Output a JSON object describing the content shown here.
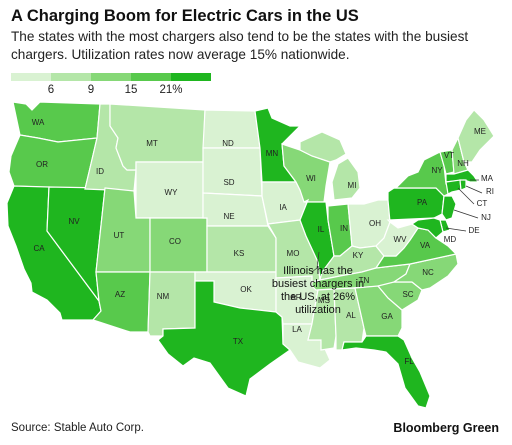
{
  "header": {
    "title": "A Charging Boom for Electric Cars in the US",
    "subtitle": "The states with the most chargers also tend to be the states with the busiest chargers. Utilization rates now average 15% nationwide."
  },
  "legend": {
    "colors": [
      "#d9f2d2",
      "#b4e6a8",
      "#86d877",
      "#58c94c",
      "#1fb61f"
    ],
    "ticks": [
      "6",
      "9",
      "15",
      "21%"
    ]
  },
  "colors": {
    "c1": "#d9f2d2",
    "c2": "#b4e6a8",
    "c3": "#86d877",
    "c4": "#58c94c",
    "c5": "#1fb61f"
  },
  "states": [
    {
      "abbr": "WA",
      "bin": 4
    },
    {
      "abbr": "OR",
      "bin": 4
    },
    {
      "abbr": "CA",
      "bin": 5
    },
    {
      "abbr": "NV",
      "bin": 5
    },
    {
      "abbr": "ID",
      "bin": 2
    },
    {
      "abbr": "MT",
      "bin": 2
    },
    {
      "abbr": "WY",
      "bin": 1
    },
    {
      "abbr": "UT",
      "bin": 3
    },
    {
      "abbr": "AZ",
      "bin": 4
    },
    {
      "abbr": "CO",
      "bin": 3
    },
    {
      "abbr": "NM",
      "bin": 2
    },
    {
      "abbr": "ND",
      "bin": 1
    },
    {
      "abbr": "SD",
      "bin": 1
    },
    {
      "abbr": "NE",
      "bin": 1
    },
    {
      "abbr": "KS",
      "bin": 2
    },
    {
      "abbr": "OK",
      "bin": 1
    },
    {
      "abbr": "TX",
      "bin": 5
    },
    {
      "abbr": "MN",
      "bin": 5
    },
    {
      "abbr": "IA",
      "bin": 1
    },
    {
      "abbr": "MO",
      "bin": 2
    },
    {
      "abbr": "AR",
      "bin": 1
    },
    {
      "abbr": "LA",
      "bin": 1
    },
    {
      "abbr": "WI",
      "bin": 3
    },
    {
      "abbr": "IL",
      "bin": 5
    },
    {
      "abbr": "MI",
      "bin": 2
    },
    {
      "abbr": "IN",
      "bin": 4
    },
    {
      "abbr": "OH",
      "bin": 1
    },
    {
      "abbr": "KY",
      "bin": 2
    },
    {
      "abbr": "TN",
      "bin": 3
    },
    {
      "abbr": "MS",
      "bin": 2
    },
    {
      "abbr": "AL",
      "bin": 2
    },
    {
      "abbr": "GA",
      "bin": 3
    },
    {
      "abbr": "FL",
      "bin": 5
    },
    {
      "abbr": "SC",
      "bin": 3
    },
    {
      "abbr": "NC",
      "bin": 3
    },
    {
      "abbr": "VA",
      "bin": 4
    },
    {
      "abbr": "WV",
      "bin": 1
    },
    {
      "abbr": "PA",
      "bin": 5
    },
    {
      "abbr": "NY",
      "bin": 4
    },
    {
      "abbr": "VT",
      "bin": 4
    },
    {
      "abbr": "NH",
      "bin": 3
    },
    {
      "abbr": "ME",
      "bin": 2
    },
    {
      "abbr": "MA",
      "bin": 5
    },
    {
      "abbr": "RI",
      "bin": 5
    },
    {
      "abbr": "CT",
      "bin": 5
    },
    {
      "abbr": "NJ",
      "bin": 5
    },
    {
      "abbr": "DE",
      "bin": 5
    },
    {
      "abbr": "MD",
      "bin": 5
    }
  ],
  "annotation": {
    "line1": "Illinois has the",
    "line2": "busiest chargers in",
    "line3": "the US, at 26%",
    "line4": "utilization"
  },
  "footer": {
    "source": "Source: Stable Auto Corp.",
    "brand": "Bloomberg Green"
  }
}
